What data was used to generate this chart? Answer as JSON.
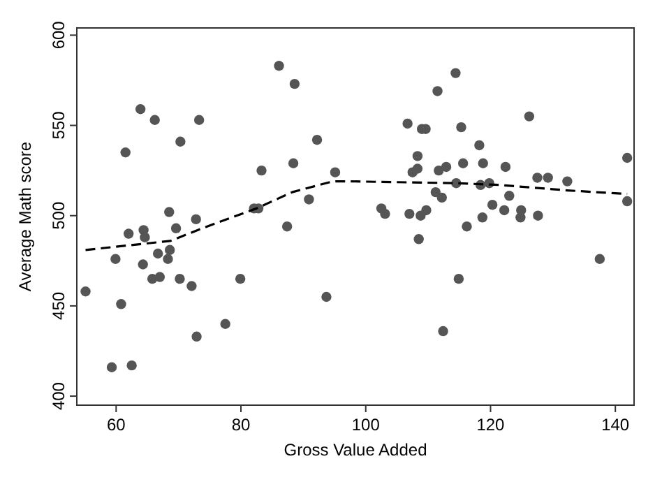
{
  "chart_data": {
    "type": "scatter",
    "xlabel": "Gross Value Added",
    "ylabel": "Average Math score",
    "xlim": [
      53.7,
      143
    ],
    "ylim": [
      395,
      604
    ],
    "xticks": [
      60,
      80,
      100,
      120,
      140
    ],
    "yticks": [
      400,
      450,
      500,
      550,
      600
    ],
    "grid": false,
    "marker": "circle",
    "series": [
      {
        "color": "#555555",
        "x": [
          61.5,
          63.9,
          66.2,
          70.3,
          73.3,
          86.1,
          88.6,
          92.2,
          83.3,
          88.4,
          95.1,
          68.5,
          72.8,
          82.1,
          82.8,
          90.9,
          87.4,
          62.0,
          64.4,
          64.6,
          69.6,
          68.6,
          59.9,
          66.7,
          68.3,
          64.3,
          65.8,
          67.0,
          70.2,
          72.1,
          79.9,
          55.1,
          60.8,
          93.7,
          77.5,
          72.9,
          59.3,
          62.5,
          114.4,
          111.5,
          106.7,
          109.0,
          109.6,
          115.3,
          126.2,
          118.2,
          108.3,
          107.5,
          108.3,
          111.7,
          112.9,
          115.6,
          118.8,
          122.4,
          141.9,
          127.5,
          129.2,
          132.3,
          114.5,
          118.4,
          119.8,
          111.2,
          112.2,
          123.0,
          141.9,
          102.5,
          103.1,
          107.0,
          108.8,
          109.7,
          120.3,
          122.2,
          124.9,
          124.8,
          127.6,
          118.7,
          116.2,
          108.5,
          114.9,
          112.4,
          137.5
        ],
        "values": [
          535,
          559,
          553,
          541,
          553,
          583,
          573,
          542,
          525,
          529,
          524,
          502,
          498,
          504,
          504,
          509,
          494,
          490,
          492,
          488,
          493,
          481,
          476,
          479,
          476,
          473,
          465,
          466,
          465,
          461,
          465,
          458,
          451,
          455,
          440,
          433,
          416,
          417,
          579,
          569,
          551,
          548,
          548,
          549,
          555,
          539,
          533,
          524,
          526,
          525,
          527,
          529,
          529,
          527,
          532,
          521,
          521,
          519,
          518,
          517,
          518,
          513,
          510,
          511,
          508,
          504,
          501,
          501,
          500,
          503,
          506,
          503,
          503,
          499,
          500,
          499,
          494,
          487,
          465,
          436,
          476
        ]
      },
      {
        "type": "line",
        "line_style": "dashed",
        "color": "#000000",
        "marker": "none",
        "x": [
          55.1,
          68.7,
          73.8,
          82.5,
          88.2,
          94.7,
          97.6,
          114.5,
          121.5,
          132.3,
          141.9
        ],
        "values": [
          481,
          486,
          493,
          504,
          513,
          519,
          519,
          518,
          517,
          514,
          512
        ]
      }
    ]
  }
}
